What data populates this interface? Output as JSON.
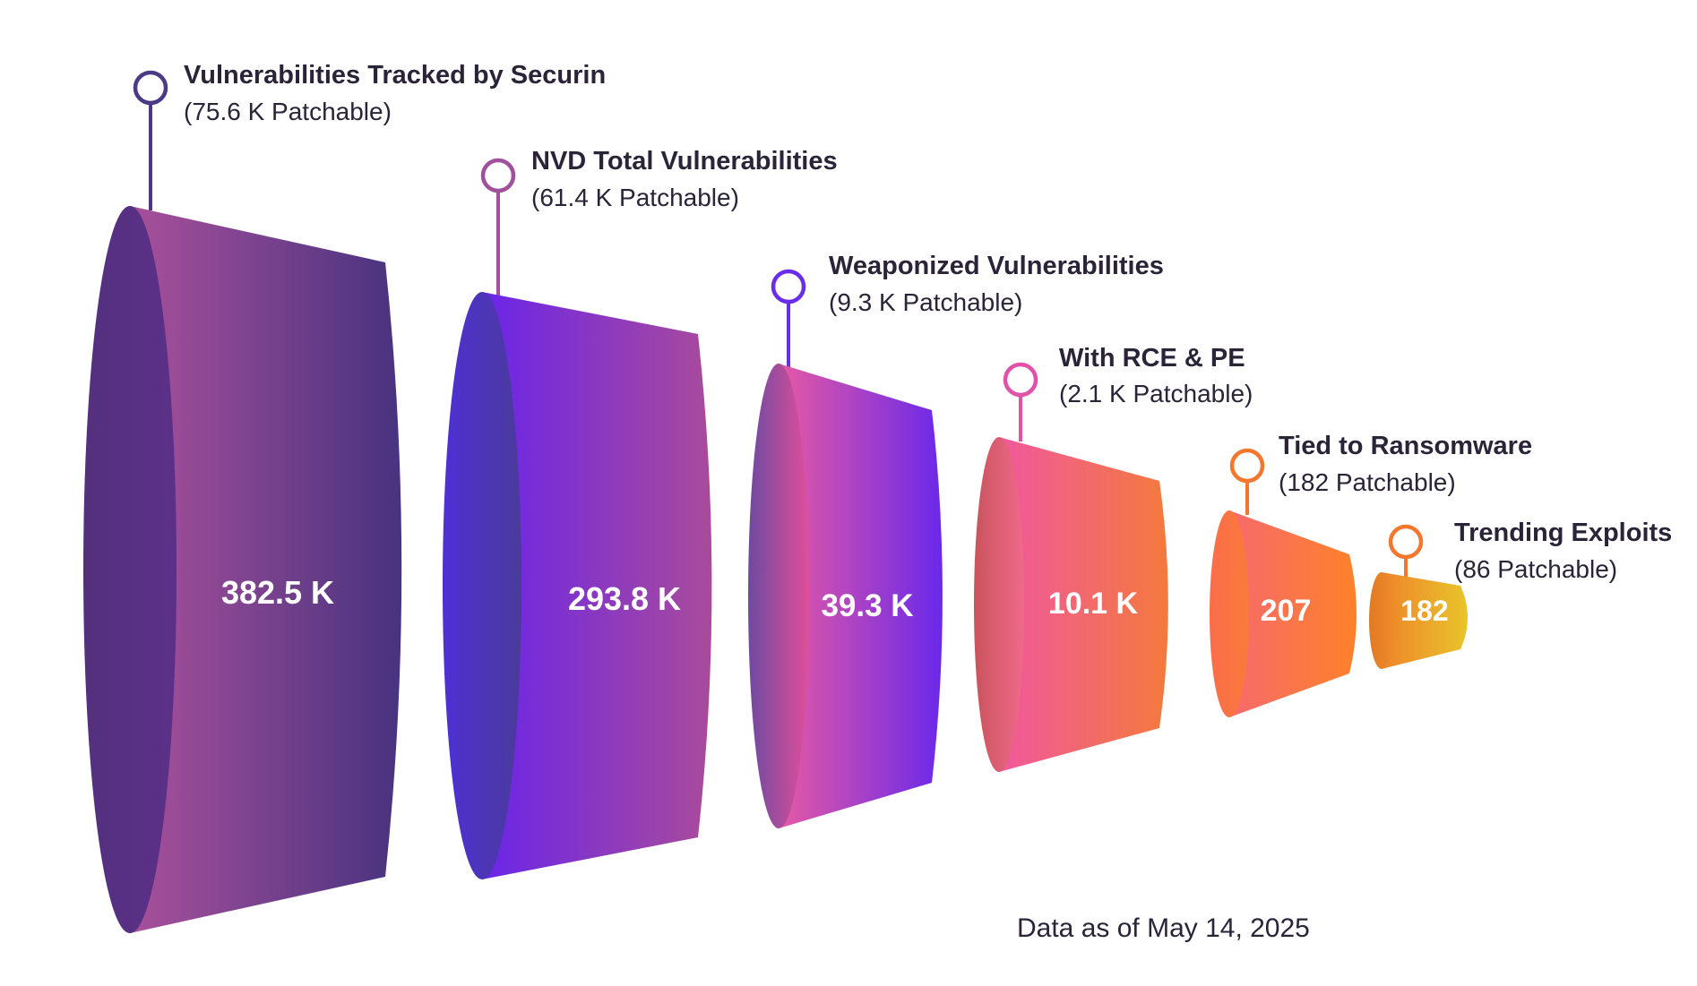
{
  "chart_data": {
    "type": "funnel",
    "stages": [
      {
        "name": "Vulnerabilities Tracked by Securin",
        "value_label": "382.5 K",
        "value": 382500,
        "patchable_label": "(75.6 K Patchable)",
        "patchable": 75600
      },
      {
        "name": "NVD Total Vulnerabilities",
        "value_label": "293.8 K",
        "value": 293800,
        "patchable_label": "(61.4 K Patchable)",
        "patchable": 61400
      },
      {
        "name": "Weaponized Vulnerabilities",
        "value_label": "39.3 K",
        "value": 39300,
        "patchable_label": "(9.3 K Patchable)",
        "patchable": 9300
      },
      {
        "name": "With RCE & PE",
        "value_label": "10.1 K",
        "value": 10100,
        "patchable_label": "(2.1 K Patchable)",
        "patchable": 2100
      },
      {
        "name": "Tied to Ransomware",
        "value_label": "207",
        "value": 207,
        "patchable_label": "(182 Patchable)",
        "patchable": 182
      },
      {
        "name": "Trending Exploits",
        "value_label": "182",
        "value": 182,
        "patchable_label": "(86 Patchable)",
        "patchable": 86
      }
    ],
    "footnote": "Data as of May 14, 2025"
  },
  "colors": {
    "text": "#2b2438",
    "stage_fills": [
      [
        "#a9509b",
        "#47337f"
      ],
      [
        "#6a25e8",
        "#a94b9b"
      ],
      [
        "#e65aa4",
        "#6a28ea"
      ],
      [
        "#f0589e",
        "#f47a3c"
      ],
      [
        "#f66a6c",
        "#ff8129"
      ],
      [
        "#ee842a",
        "#e8c52a"
      ]
    ],
    "stage_caps": [
      [
        "#53307e",
        "#5c3088"
      ],
      [
        "#4f2fd6",
        "#4a3b9a"
      ],
      [
        "#6d4aa0",
        "#e04f9a"
      ],
      [
        "#c9535c",
        "#f06a8a"
      ],
      [
        "#fb6d4c",
        "#f97a3a"
      ],
      [
        "#e07b24",
        "#f08a2a"
      ]
    ],
    "marker_colors": [
      "#4c3a86",
      "#a0509d",
      "#6a2ee8",
      "#e052a8",
      "#f4772f",
      "#f4772f"
    ]
  }
}
